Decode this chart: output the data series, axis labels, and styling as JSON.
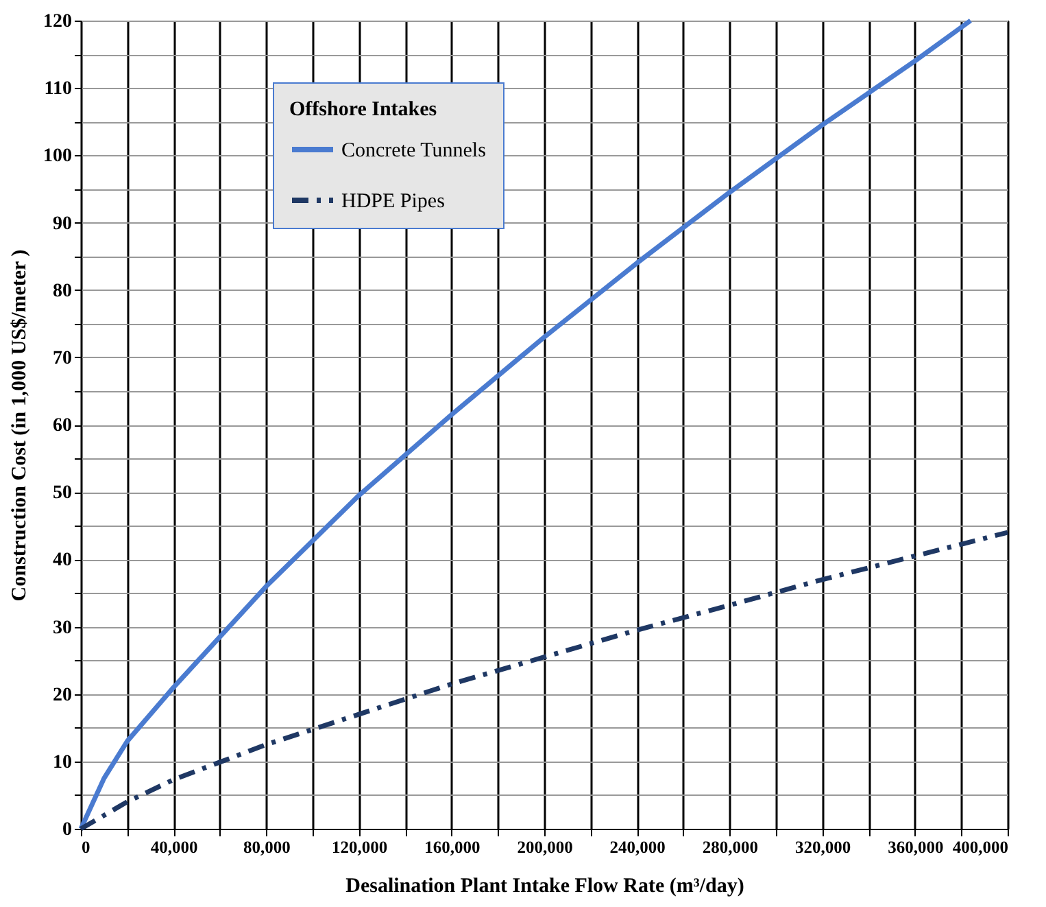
{
  "chart_data": {
    "type": "line",
    "xlabel": "Desalination Plant Intake Flow Rate (m³/day)",
    "ylabel": "Construction Cost  (in 1,000 US$/meter )",
    "legend_title": "Offshore Intakes",
    "legend": "top left",
    "grid": true,
    "marker": "none",
    "xlim": [
      0,
      400000
    ],
    "ylim": [
      0,
      120
    ],
    "xticks": [
      0,
      {
        "value": 20000,
        "label": null
      },
      {
        "value": 40000,
        "label": "40,000"
      },
      {
        "value": 60000,
        "label": null
      },
      {
        "value": 80000,
        "label": "80,000"
      },
      {
        "value": 100000,
        "label": null
      },
      {
        "value": 120000,
        "label": "120,000"
      },
      {
        "value": 140000,
        "label": null
      },
      {
        "value": 160000,
        "label": "160,000"
      },
      {
        "value": 180000,
        "label": null
      },
      {
        "value": 200000,
        "label": "200,000"
      },
      {
        "value": 220000,
        "label": null
      },
      {
        "value": 240000,
        "label": "240,000"
      },
      {
        "value": 260000,
        "label": null
      },
      {
        "value": 280000,
        "label": "280,000"
      },
      {
        "value": 300000,
        "label": null
      },
      {
        "value": 320000,
        "label": "320,000"
      },
      {
        "value": 340000,
        "label": null
      },
      {
        "value": 360000,
        "label": "360,000"
      },
      {
        "value": 380000,
        "label": null
      },
      {
        "value": 400000,
        "label": "400,000"
      }
    ],
    "yticks": [
      0,
      {
        "value": 5,
        "label": null
      },
      10,
      {
        "value": 15,
        "label": null
      },
      20,
      {
        "value": 25,
        "label": null
      },
      30,
      {
        "value": 35,
        "label": null
      },
      40,
      {
        "value": 45,
        "label": null
      },
      50,
      {
        "value": 55,
        "label": null
      },
      60,
      {
        "value": 65,
        "label": null
      },
      70,
      {
        "value": 75,
        "label": null
      },
      80,
      {
        "value": 85,
        "label": null
      },
      90,
      {
        "value": 95,
        "label": null
      },
      100,
      {
        "value": 105,
        "label": null
      },
      110,
      {
        "value": 115,
        "label": null
      },
      120
    ],
    "series": [
      {
        "name": "Concrete Tunnels",
        "color": "#4a7bd0",
        "line_style": "solid",
        "x": [
          0,
          10000,
          20000,
          40000,
          80000,
          120000,
          160000,
          200000,
          240000,
          280000,
          320000,
          360000,
          384000
        ],
        "values": [
          0,
          7.5,
          13,
          21,
          36,
          49.5,
          61.5,
          73,
          84,
          94.5,
          104.5,
          114,
          120
        ]
      },
      {
        "name": "HDPE Pipes",
        "color": "#1f3864",
        "line_style": "dashed",
        "x": [
          0,
          20000,
          40000,
          80000,
          120000,
          160000,
          200000,
          240000,
          280000,
          320000,
          360000,
          400000
        ],
        "values": [
          0,
          4,
          7.3,
          12.5,
          17,
          21.5,
          25.5,
          29.5,
          33.2,
          37,
          40.5,
          44
        ]
      }
    ]
  }
}
